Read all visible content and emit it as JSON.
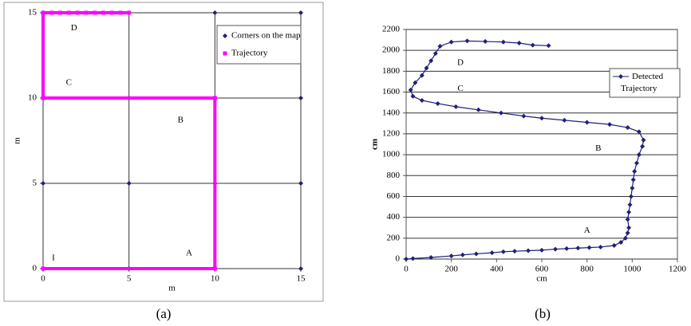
{
  "chart_data": [
    {
      "type": "line",
      "caption": "(a)",
      "xlabel": "m",
      "ylabel": "m",
      "xlim": [
        0,
        15
      ],
      "ylim": [
        0,
        15
      ],
      "xticks": [
        0,
        5,
        10,
        15
      ],
      "yticks": [
        0,
        5,
        10,
        15
      ],
      "grid": "both",
      "legend": "upper right",
      "series": [
        {
          "name": "Corners on the map",
          "color": "#1f1f7a",
          "marker": "diamond",
          "line": false,
          "x": [
            0,
            5,
            10,
            15,
            0,
            5,
            10,
            15,
            0,
            5,
            10,
            15,
            0,
            5,
            10,
            15
          ],
          "values": [
            0,
            0,
            0,
            0,
            5,
            5,
            5,
            5,
            10,
            10,
            10,
            10,
            15,
            15,
            15,
            15
          ]
        },
        {
          "name": "Trajectory",
          "color": "#ff00ff",
          "marker": "square",
          "line": true,
          "x": [
            0,
            10,
            10,
            0,
            0,
            0.5,
            1,
            1.5,
            2,
            2.5,
            3,
            3.5,
            4,
            4.5,
            5
          ],
          "values": [
            0,
            0,
            10,
            10,
            15,
            15,
            15,
            15,
            15,
            15,
            15,
            15,
            15,
            15,
            15
          ]
        }
      ],
      "annotations": [
        {
          "text": "I",
          "x": 0.6,
          "y": 0.6
        },
        {
          "text": "A",
          "x": 8.5,
          "y": 0.9
        },
        {
          "text": "B",
          "x": 8,
          "y": 8.7
        },
        {
          "text": "C",
          "x": 1.5,
          "y": 10.9
        },
        {
          "text": "D",
          "x": 1.8,
          "y": 14.1
        }
      ]
    },
    {
      "type": "line",
      "caption": "(b)",
      "xlabel": "cm",
      "ylabel": "cm",
      "xlim": [
        0,
        1200
      ],
      "ylim": [
        0,
        2200
      ],
      "xticks": [
        0,
        200,
        400,
        600,
        800,
        1000,
        1200
      ],
      "yticks": [
        0,
        200,
        400,
        600,
        800,
        1000,
        1200,
        1400,
        1600,
        1800,
        2000,
        2200
      ],
      "grid": "y",
      "legend": "right",
      "series": [
        {
          "name": "Detected Trajectory",
          "color": "#1f1f7a",
          "marker": "diamond",
          "line": true,
          "x": [
            0,
            30,
            110,
            200,
            250,
            310,
            380,
            430,
            480,
            540,
            600,
            660,
            710,
            760,
            810,
            860,
            920,
            950,
            970,
            980,
            985,
            980,
            985,
            990,
            995,
            1000,
            1005,
            1010,
            1020,
            1030,
            1045,
            1050,
            1030,
            980,
            900,
            800,
            700,
            600,
            520,
            420,
            320,
            220,
            140,
            70,
            30,
            20,
            40,
            70,
            90,
            110,
            130,
            150,
            200,
            270,
            350,
            430,
            500,
            560,
            630
          ],
          "values": [
            0,
            5,
            15,
            30,
            40,
            50,
            60,
            70,
            75,
            80,
            85,
            95,
            100,
            105,
            110,
            115,
            130,
            160,
            200,
            250,
            300,
            380,
            450,
            520,
            600,
            680,
            760,
            840,
            920,
            1000,
            1080,
            1140,
            1220,
            1260,
            1290,
            1310,
            1330,
            1350,
            1370,
            1400,
            1430,
            1460,
            1490,
            1520,
            1560,
            1620,
            1690,
            1760,
            1830,
            1900,
            1970,
            2040,
            2080,
            2090,
            2085,
            2080,
            2070,
            2050,
            2045
          ]
        }
      ],
      "annotations": [
        {
          "text": "A",
          "x": 800,
          "y": 270
        },
        {
          "text": "B",
          "x": 850,
          "y": 1060
        },
        {
          "text": "C",
          "x": 240,
          "y": 1630
        },
        {
          "text": "D",
          "x": 240,
          "y": 1880
        }
      ]
    }
  ]
}
